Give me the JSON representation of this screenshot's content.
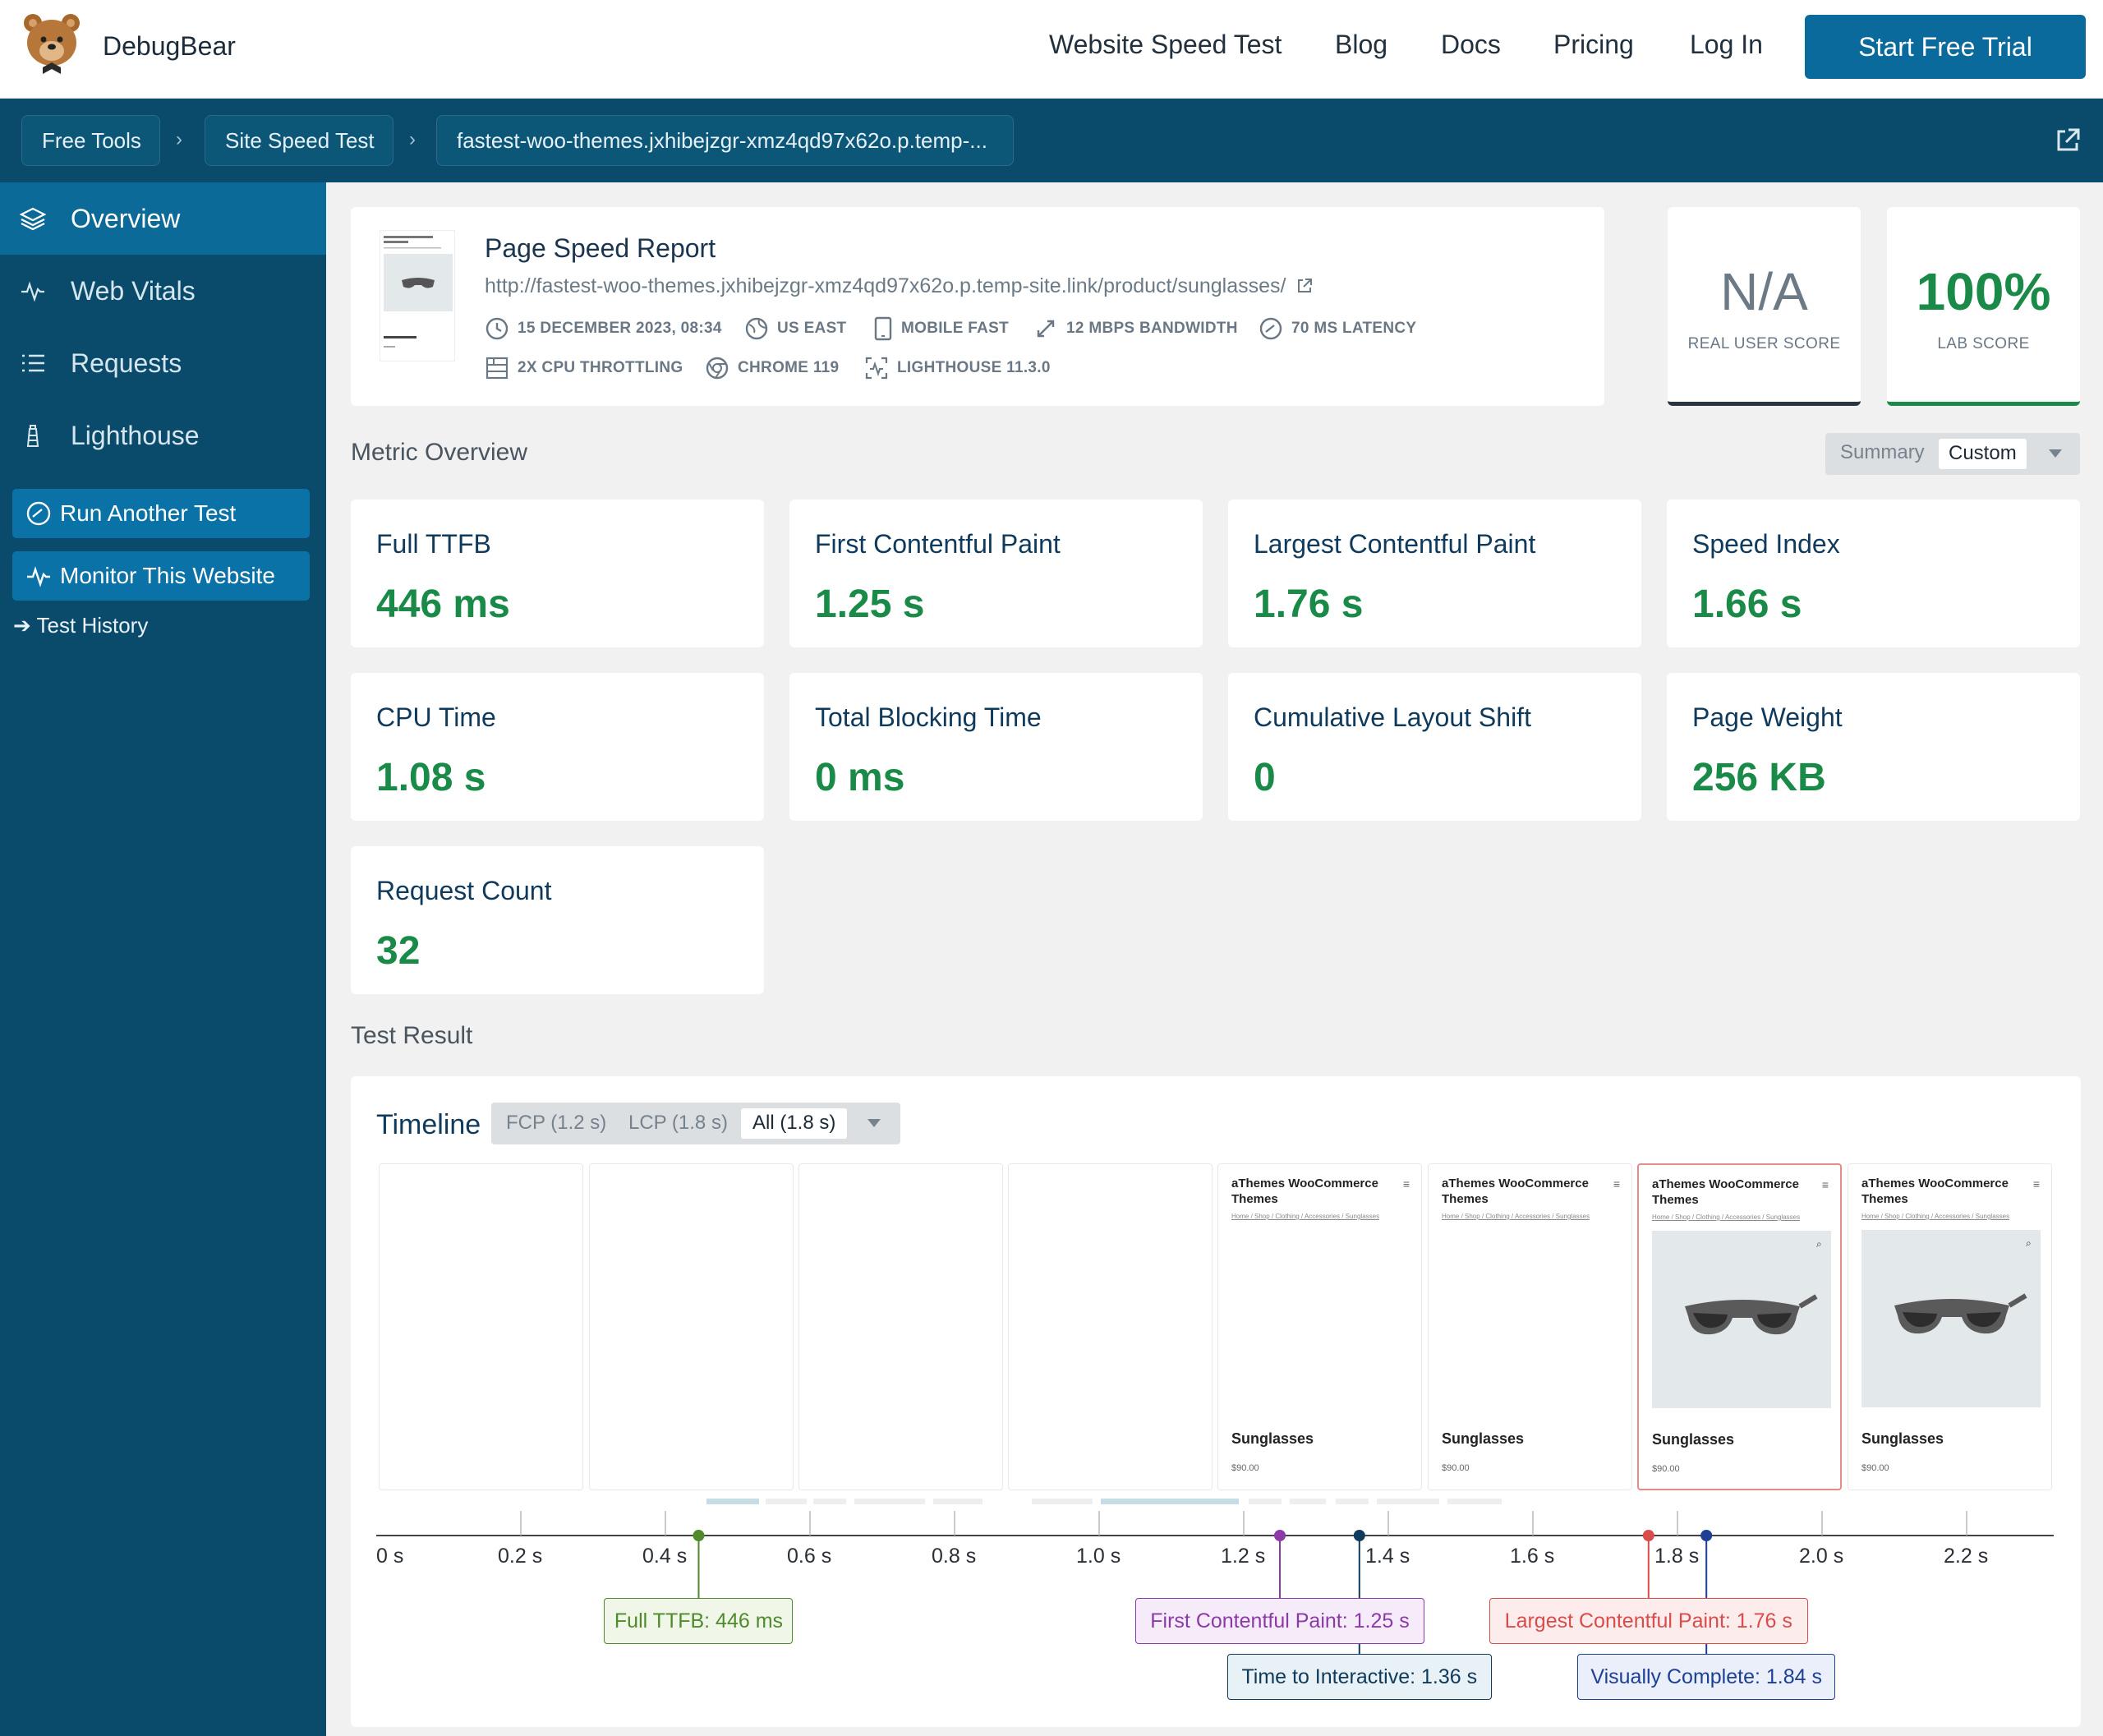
{
  "header": {
    "brand": "DebugBear",
    "nav": [
      "Website Speed Test",
      "Blog",
      "Docs",
      "Pricing",
      "Log In"
    ],
    "cta": "Start Free Trial"
  },
  "breadcrumb": [
    "Free Tools",
    "Site Speed Test",
    "fastest-woo-themes.jxhibejzgr-xmz4qd97x62o.p.temp-..."
  ],
  "sidebar": {
    "items": [
      "Overview",
      "Web Vitals",
      "Requests",
      "Lighthouse"
    ],
    "buttons": [
      "Run Another Test",
      "Monitor This Website"
    ],
    "link": "➔ Test History"
  },
  "report": {
    "title": "Page Speed Report",
    "url": "http://fastest-woo-themes.jxhibejzgr-xmz4qd97x62o.p.temp-site.link/product/sunglasses/",
    "meta": {
      "date": "15 DECEMBER 2023, 08:34",
      "location": "US EAST",
      "device": "MOBILE FAST",
      "bandwidth": "12 MBPS BANDWIDTH",
      "latency": "70 MS LATENCY",
      "cpu": "2X CPU THROTTLING",
      "browser": "CHROME 119",
      "lighthouse": "LIGHTHOUSE 11.3.0"
    },
    "real_user_score": {
      "value": "N/A",
      "label": "REAL USER SCORE"
    },
    "lab_score": {
      "value": "100%",
      "label": "LAB SCORE"
    }
  },
  "metric_overview": {
    "title": "Metric Overview",
    "toggle": [
      "Summary",
      "Custom"
    ],
    "metrics": [
      {
        "label": "Full TTFB",
        "value": "446 ms"
      },
      {
        "label": "First Contentful Paint",
        "value": "1.25 s"
      },
      {
        "label": "Largest Contentful Paint",
        "value": "1.76 s"
      },
      {
        "label": "Speed Index",
        "value": "1.66 s"
      },
      {
        "label": "CPU Time",
        "value": "1.08 s"
      },
      {
        "label": "Total Blocking Time",
        "value": "0 ms"
      },
      {
        "label": "Cumulative Layout Shift",
        "value": "0"
      },
      {
        "label": "Page Weight",
        "value": "256 KB"
      },
      {
        "label": "Request Count",
        "value": "32"
      }
    ]
  },
  "test_result": {
    "title": "Test Result",
    "timeline_title": "Timeline",
    "timeline_toggle": [
      "FCP (1.2 s)",
      "LCP (1.8 s)",
      "All (1.8 s)"
    ],
    "frame": {
      "site": "aThemes WooCommerce Themes",
      "crumbs": "Home / Shop / Clothing / Accessories / Sunglasses",
      "product": "Sunglasses",
      "price": "$90.00"
    },
    "axis": [
      "0 s",
      "0.2 s",
      "0.4 s",
      "0.6 s",
      "0.8 s",
      "1.0 s",
      "1.2 s",
      "1.4 s",
      "1.6 s",
      "1.8 s",
      "2.0 s",
      "2.2 s"
    ],
    "markers": [
      {
        "label": "Full TTFB: 446 ms",
        "time": 0.446,
        "color": "#4f8a2b"
      },
      {
        "label": "First Contentful Paint: 1.25 s",
        "time": 1.25,
        "color": "#8c3aa8"
      },
      {
        "label": "Time to Interactive: 1.36 s",
        "time": 1.36,
        "color": "#103a5c"
      },
      {
        "label": "Largest Contentful Paint: 1.76 s",
        "time": 1.76,
        "color": "#d94c4c"
      },
      {
        "label": "Visually Complete: 1.84 s",
        "time": 1.84,
        "color": "#1d3f94"
      }
    ]
  },
  "colors": {
    "accent": "#0a6a9c",
    "good": "#1a8a48",
    "navy": "#0a4a6b"
  }
}
